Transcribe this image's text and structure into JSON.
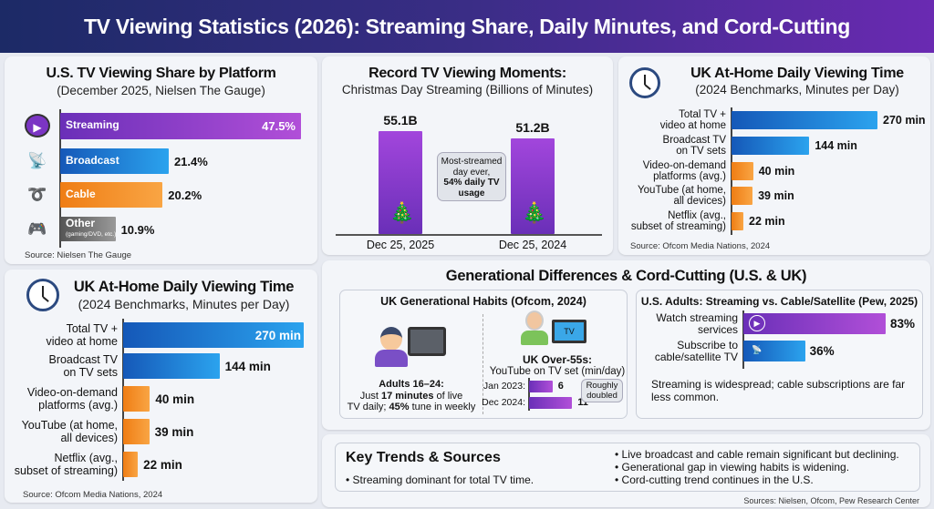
{
  "header": {
    "title": "TV Viewing Statistics (2026): Streaming Share, Daily Minutes, and Cord-Cutting"
  },
  "chart_data": [
    {
      "type": "bar",
      "orientation": "horizontal",
      "title": "U.S. TV Viewing Share by Platform",
      "subtitle": "(December 2025, Nielsen The Gauge)",
      "categories": [
        "Streaming",
        "Broadcast",
        "Cable",
        "Other"
      ],
      "category_notes": [
        "",
        "",
        "",
        "(gaming/DVD, etc.)"
      ],
      "values": [
        47.5,
        21.4,
        20.2,
        10.9
      ],
      "value_labels": [
        "47.5%",
        "21.4%",
        "20.2%",
        "10.9%"
      ],
      "colors": [
        "#7b35c4",
        "#1a74d2",
        "#f28a1e",
        "#777777"
      ],
      "icons": [
        "play-icon",
        "broadcast-tower-icon",
        "cable-icon",
        "gamepad-disc-icon"
      ],
      "source": "Source: Nielsen The Gauge"
    },
    {
      "type": "bar",
      "title": "Record TV Viewing Moments:",
      "subtitle": "Christmas Day Streaming (Billions of Minutes)",
      "categories": [
        "Dec 25, 2025",
        "Dec 25, 2024"
      ],
      "values": [
        55.1,
        51.2
      ],
      "value_labels": [
        "55.1B",
        "51.2B"
      ],
      "color": "#8a3bd0",
      "annotation": {
        "text": "Most-streamed day ever,",
        "bold": "54% daily TV usage"
      },
      "icons": [
        "christmas-tree-icon"
      ]
    },
    {
      "type": "bar",
      "orientation": "horizontal",
      "title": "UK At-Home Daily Viewing Time",
      "subtitle": "(2024 Benchmarks, Minutes per Day)",
      "categories": [
        "Total TV + video at home",
        "Broadcast TV on TV sets",
        "Video-on-demand platforms (avg.)",
        "YouTube (at home, all devices)",
        "Netflix (avg., subset of streaming)"
      ],
      "values": [
        270,
        144,
        40,
        39,
        22
      ],
      "value_labels": [
        "270 min",
        "144 min",
        "40 min",
        "39 min",
        "22 min"
      ],
      "colors": [
        "#1a74d2",
        "#1a74d2",
        "#f28a1e",
        "#f28a1e",
        "#f28a1e"
      ],
      "source": "Source: Ofcom Media Nations, 2024"
    },
    {
      "type": "bar",
      "orientation": "horizontal",
      "title": "UK At-Home Daily Viewing Time",
      "subtitle": "(2024 Benchmarks, Minutes per Day)",
      "categories": [
        "Total TV + video at home",
        "Broadcast TV on TV sets",
        "Video-on-demand platforms (avg.)",
        "YouTube (at home, all devices)",
        "Netflix (avg., subset of streaming)"
      ],
      "values": [
        270,
        144,
        40,
        39,
        22
      ],
      "value_labels": [
        "270 min",
        "144 min",
        "40 min",
        "39 min",
        "22 min"
      ],
      "colors": [
        "#1a74d2",
        "#1a74d2",
        "#f28a1e",
        "#f28a1e",
        "#f28a1e"
      ],
      "source": "Source: Ofcom Media Nations, 2024"
    },
    {
      "type": "bar",
      "orientation": "horizontal",
      "title": "UK Over-55s:",
      "subtitle": "YouTube on TV set (min/day)",
      "categories": [
        "Jan 2023:",
        "Dec 2024:"
      ],
      "values": [
        6,
        11
      ],
      "value_labels": [
        "6",
        "11"
      ],
      "annotation": "Roughly doubled",
      "color": "#8a3bd0"
    },
    {
      "type": "bar",
      "orientation": "horizontal",
      "title": "U.S. Adults: Streaming vs. Cable/Satellite (Pew, 2025)",
      "categories": [
        "Watch streaming services",
        "Subscribe to cable/satellite TV"
      ],
      "values": [
        83,
        36
      ],
      "value_labels": [
        "83%",
        "36%"
      ],
      "colors": [
        "#8a3bd0",
        "#1a74d2"
      ],
      "note": "Streaming is widespread; cable subscriptions are far less common."
    }
  ],
  "generational": {
    "title": "Generational Differences & Cord-Cutting (U.S. & UK)",
    "left_title": "UK Generational Habits (Ofcom, 2024)",
    "young_title": "Adults 16–24:",
    "young_l1a": "Just ",
    "young_l1b": "17 minutes",
    "young_l1c": " of live",
    "young_l2a": "TV daily; ",
    "young_l2b": "45%",
    "young_l2c": " tune in weekly",
    "tv_label": "TV"
  },
  "trends": {
    "title": "Key Trends & Sources",
    "items": [
      "Streaming dominant for total TV time.",
      "Live broadcast and cable remain significant but declining.",
      "Generational gap in viewing habits is widening.",
      "Cord-cutting trend continues in the U.S."
    ],
    "sources": "Sources: Nielsen, Ofcom, Pew Research Center"
  }
}
